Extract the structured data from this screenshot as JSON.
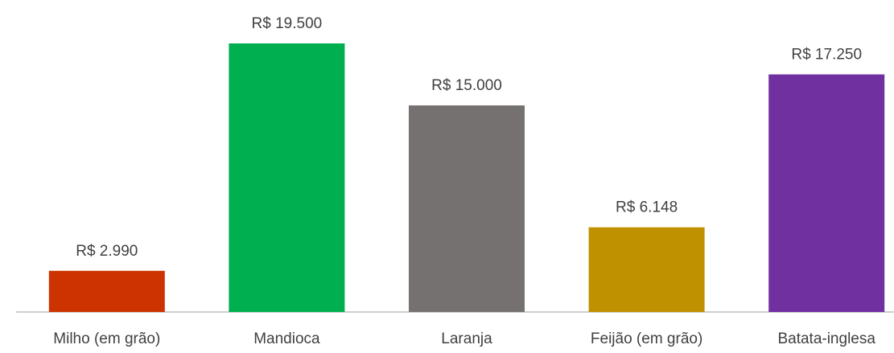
{
  "chart_data": {
    "type": "bar",
    "categories": [
      "Milho (em grão)",
      "Mandioca",
      "Laranja",
      "Feijão (em grão)",
      "Batata-inglesa"
    ],
    "values": [
      2990,
      19500,
      15000,
      6148,
      17250
    ],
    "value_labels": [
      "R$ 2.990",
      "R$ 19.500",
      "R$ 15.000",
      "R$ 6.148",
      "R$ 17.250"
    ],
    "colors": [
      "#cc3300",
      "#00b050",
      "#757171",
      "#bf9000",
      "#7030a0"
    ]
  }
}
